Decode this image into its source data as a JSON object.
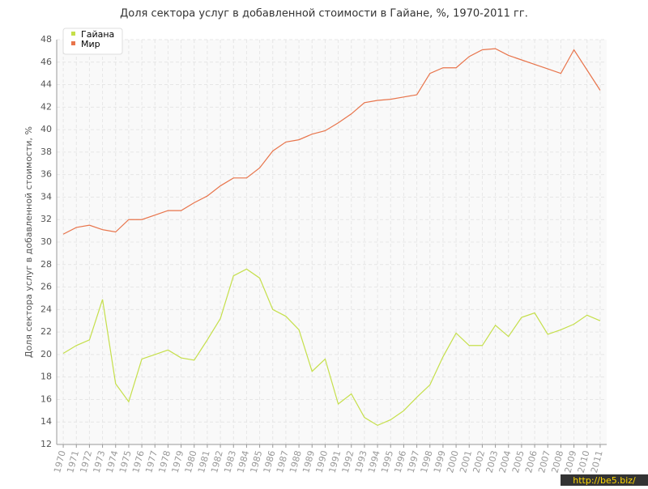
{
  "chart_data": {
    "type": "line",
    "title": "Доля сектора услуг в добавленной стоимости в Гайане, %, 1970-2011 гг.",
    "y_label": "Доля сектора услуг в добавленной стоимости, %",
    "categories": [
      "1970",
      "1971",
      "1972",
      "1973",
      "1974",
      "1975",
      "1976",
      "1977",
      "1978",
      "1979",
      "1980",
      "1981",
      "1982",
      "1983",
      "1984",
      "1985",
      "1986",
      "1987",
      "1988",
      "1989",
      "1990",
      "1991",
      "1992",
      "1993",
      "1994",
      "1995",
      "1996",
      "1997",
      "1998",
      "1999",
      "2000",
      "2001",
      "2002",
      "2003",
      "2004",
      "2005",
      "2006",
      "2007",
      "2008",
      "2009",
      "2010",
      "2011"
    ],
    "series": [
      {
        "name": "Гайана",
        "color": "#c5df4a",
        "values": [
          20.1,
          20.8,
          21.3,
          24.9,
          17.4,
          15.8,
          19.6,
          20.0,
          20.4,
          19.7,
          19.5,
          21.3,
          23.2,
          27.0,
          27.6,
          26.8,
          24.0,
          23.4,
          22.2,
          18.5,
          19.6,
          15.6,
          16.5,
          14.4,
          13.7,
          14.2,
          15.0,
          16.2,
          17.3,
          19.8,
          21.9,
          20.8,
          20.8,
          22.6,
          21.6,
          23.3,
          23.7,
          21.8,
          22.2,
          22.7,
          23.5,
          23.0
        ]
      },
      {
        "name": "Мир",
        "color": "#e8744b",
        "values": [
          30.7,
          31.3,
          31.5,
          31.1,
          30.9,
          32.0,
          32.0,
          32.4,
          32.8,
          32.8,
          33.5,
          34.1,
          35.0,
          35.7,
          35.7,
          36.6,
          38.1,
          38.9,
          39.1,
          39.6,
          39.9,
          40.6,
          41.4,
          42.4,
          42.6,
          42.7,
          42.9,
          43.1,
          45.0,
          45.5,
          45.5,
          46.5,
          47.1,
          47.2,
          46.6,
          46.2,
          45.8,
          45.4,
          45.0,
          47.1,
          45.3,
          43.5
        ]
      }
    ],
    "ylim": [
      12,
      48
    ],
    "yticks": [
      12,
      14,
      16,
      18,
      20,
      22,
      24,
      26,
      28,
      30,
      32,
      34,
      36,
      38,
      40,
      42,
      44,
      46,
      48
    ],
    "grid": true,
    "legend": "top-left",
    "watermark": "http://be5.biz/"
  }
}
